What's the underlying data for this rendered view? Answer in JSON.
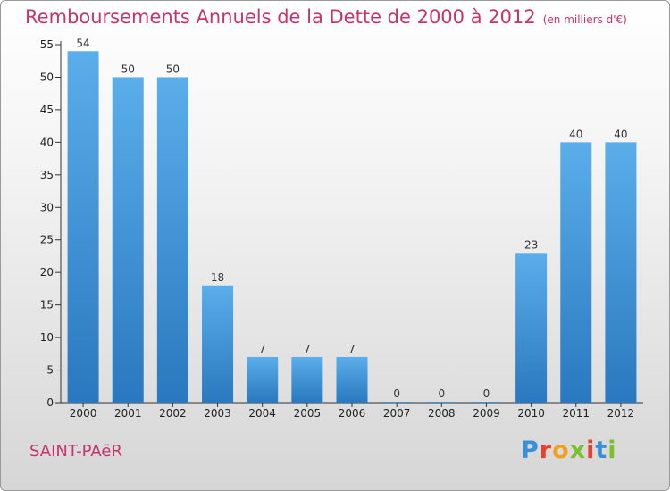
{
  "header": {
    "title": "Remboursements Annuels de la Dette de 2000 à 2012",
    "subtitle": "(en milliers d'€)"
  },
  "footer": {
    "town": "SAINT-PAëR",
    "logo_letters": [
      "P",
      "r",
      "o",
      "x",
      "i",
      "t",
      "i"
    ],
    "logo_colors": [
      "#3b8fd6",
      "#e8402f",
      "#f0a020",
      "#7cbf2d",
      "#e8402f",
      "#3b8fd6",
      "#7cbf2d"
    ]
  },
  "chart_data": {
    "type": "bar",
    "title": "Remboursements Annuels de la Dette de 2000 à 2012",
    "subtitle": "(en milliers d'€)",
    "categories": [
      "2000",
      "2001",
      "2002",
      "2003",
      "2004",
      "2005",
      "2006",
      "2007",
      "2008",
      "2009",
      "2010",
      "2011",
      "2012"
    ],
    "values": [
      54,
      50,
      50,
      18,
      7,
      7,
      7,
      0,
      0,
      0,
      23,
      40,
      40
    ],
    "ylim": [
      0,
      55
    ],
    "yticks": [
      0,
      5,
      10,
      15,
      20,
      25,
      30,
      35,
      40,
      45,
      50,
      55
    ],
    "grid": false,
    "bar_color_light": "#5aaeea",
    "bar_color_dark": "#2a78bf",
    "xlabel": "",
    "ylabel": ""
  }
}
